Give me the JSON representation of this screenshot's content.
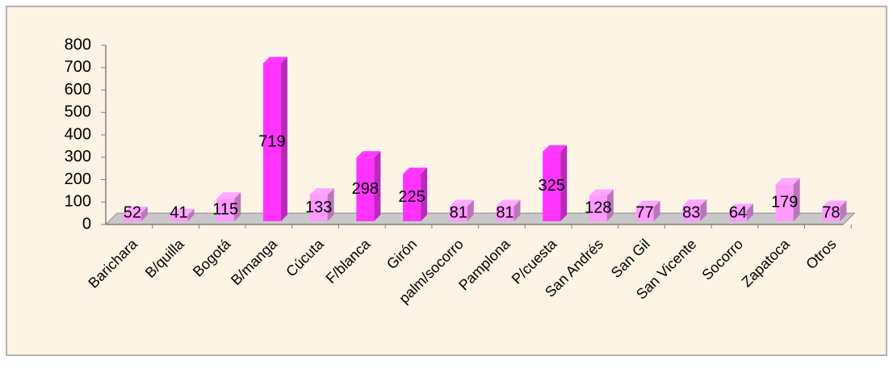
{
  "chart_data": {
    "type": "bar3d",
    "categories": [
      "Barichara",
      "B/quilla",
      "Bogotá",
      "B/manga",
      "Cúcuta",
      "F/blanca",
      "Girón",
      "palm/socorro",
      "Pamplona",
      "P/cuesta",
      "San Andrés",
      "San Gil",
      "San Vicente",
      "Socorro",
      "Zapatoca",
      "Otros"
    ],
    "values": [
      52,
      41,
      115,
      719,
      133,
      298,
      225,
      81,
      81,
      325,
      128,
      77,
      83,
      64,
      179,
      78
    ],
    "colors": [
      "#ff99ff",
      "#ff99ff",
      "#ff99ff",
      "#ff33ff",
      "#ff99ff",
      "#ff33ff",
      "#ff33ff",
      "#ff99ff",
      "#ff99ff",
      "#ff33ff",
      "#ff99ff",
      "#ff99ff",
      "#ff99ff",
      "#ff99ff",
      "#ff99ff",
      "#ff99ff"
    ],
    "ylim": [
      0,
      800
    ],
    "yticks": [
      0,
      100,
      200,
      300,
      400,
      500,
      600,
      700,
      800
    ],
    "grid": false,
    "data_labels": true
  }
}
